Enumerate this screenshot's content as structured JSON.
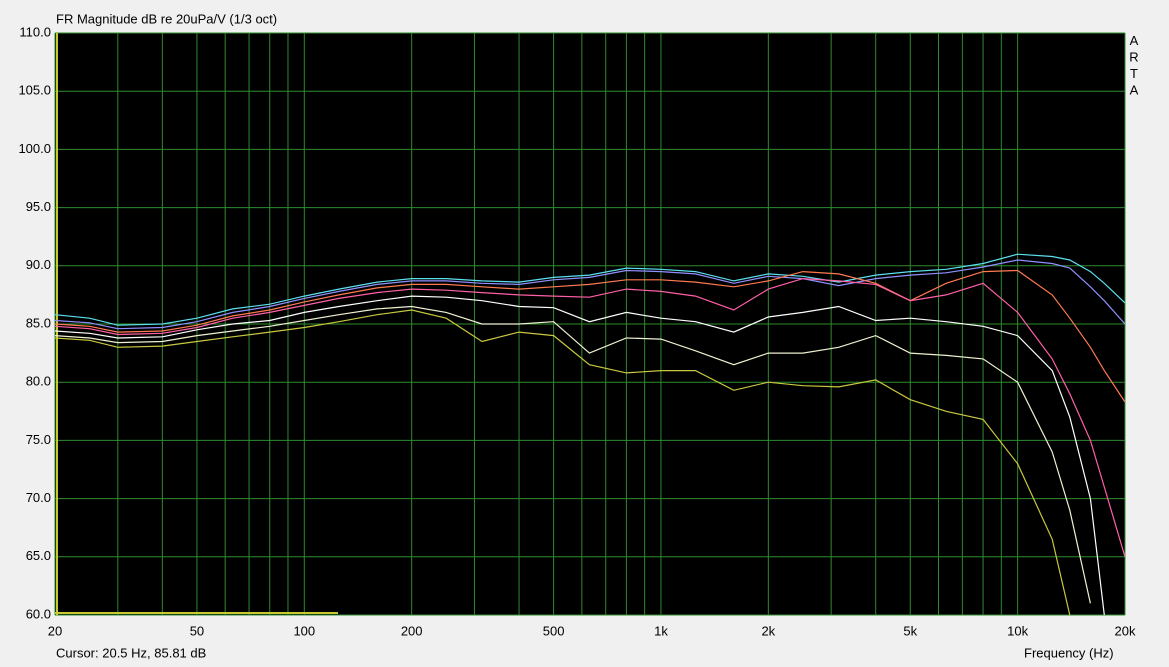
{
  "chart_data": {
    "type": "line",
    "title": "FR Magnitude dB re 20uPa/V (1/3 oct)",
    "watermark": "ARTA",
    "cursor_text": "Cursor: 20.5 Hz, 85.81 dB",
    "x_label": "Frequency (Hz)",
    "log_x": true,
    "grid": true,
    "xlim": [
      20,
      20000
    ],
    "ylim": [
      60,
      110
    ],
    "xticks": [
      20,
      50,
      100,
      200,
      500,
      {
        "value": 1000,
        "label": "1k"
      },
      {
        "value": 2000,
        "label": "2k"
      },
      {
        "value": 5000,
        "label": "5k"
      },
      {
        "value": 10000,
        "label": "10k"
      },
      {
        "value": 20000,
        "label": "20k"
      }
    ],
    "xminor": [
      30,
      40,
      60,
      70,
      80,
      90,
      300,
      400,
      600,
      700,
      800,
      900,
      3000,
      4000,
      6000,
      7000,
      8000,
      9000
    ],
    "yticks": [
      {
        "value": 60,
        "label": "60.0"
      },
      {
        "value": 65,
        "label": "65.0"
      },
      {
        "value": 70,
        "label": "70.0"
      },
      {
        "value": 75,
        "label": "75.0"
      },
      {
        "value": 80,
        "label": "80.0"
      },
      {
        "value": 85,
        "label": "85.0"
      },
      {
        "value": 90,
        "label": "90.0"
      },
      {
        "value": 95,
        "label": "95.0"
      },
      {
        "value": 100,
        "label": "100.0"
      },
      {
        "value": 105,
        "label": "105.0"
      },
      {
        "value": 110,
        "label": "110.0"
      }
    ],
    "x": [
      20,
      25,
      30,
      40,
      50,
      63,
      80,
      100,
      125,
      160,
      200,
      250,
      315,
      400,
      500,
      630,
      800,
      1000,
      1250,
      1600,
      2000,
      2500,
      3150,
      4000,
      5000,
      6300,
      8000,
      10000,
      12500,
      14000,
      16000,
      17500,
      20000
    ],
    "series": [
      {
        "color": "#5ce0f0",
        "values": [
          85.8,
          85.5,
          84.9,
          85,
          85.5,
          86.3,
          86.7,
          87.4,
          88,
          88.6,
          88.9,
          88.9,
          88.7,
          88.6,
          89,
          89.2,
          89.8,
          89.7,
          89.5,
          88.7,
          89.3,
          89.1,
          88.6,
          89.2,
          89.5,
          89.7,
          90.2,
          91,
          90.8,
          90.5,
          89.5,
          88.5,
          86.8
        ]
      },
      {
        "color": "#9090ff",
        "values": [
          85.3,
          85.1,
          84.6,
          84.7,
          85.2,
          86,
          86.5,
          87.2,
          87.8,
          88.4,
          88.7,
          88.7,
          88.5,
          88.4,
          88.8,
          89,
          89.6,
          89.5,
          89.3,
          88.5,
          89.1,
          88.9,
          88.3,
          88.9,
          89.2,
          89.4,
          89.9,
          90.5,
          90.2,
          89.8,
          88.2,
          87,
          85
        ]
      },
      {
        "color": "#ff7a50",
        "values": [
          85,
          84.8,
          84.3,
          84.4,
          84.9,
          85.7,
          86.2,
          86.9,
          87.5,
          88.1,
          88.4,
          88.4,
          88.2,
          88,
          88.2,
          88.4,
          88.8,
          88.8,
          88.6,
          88.2,
          88.7,
          89.5,
          89.3,
          88.5,
          87,
          88.5,
          89.5,
          89.6,
          87.5,
          85.5,
          83,
          81,
          78.3
        ]
      },
      {
        "color": "#ff60a8",
        "values": [
          84.8,
          84.6,
          84.1,
          84.2,
          84.7,
          85.5,
          86,
          86.6,
          87.2,
          87.7,
          88,
          87.9,
          87.7,
          87.5,
          87.4,
          87.3,
          88,
          87.8,
          87.4,
          86.2,
          88,
          88.9,
          88.7,
          88.4,
          87,
          87.5,
          88.5,
          86,
          82,
          79,
          75,
          71,
          65
        ]
      },
      {
        "color": "#ffffff",
        "values": [
          84.4,
          84.2,
          83.8,
          83.9,
          84.5,
          85,
          85.3,
          86,
          86.5,
          87,
          87.4,
          87.3,
          87,
          86.5,
          86.4,
          85.2,
          86,
          85.5,
          85.2,
          84.3,
          85.6,
          86,
          86.5,
          85.3,
          85.5,
          85.2,
          84.8,
          84,
          81,
          77,
          70,
          60,
          null
        ]
      },
      {
        "color": "#f0f0d0",
        "values": [
          84,
          83.8,
          83.4,
          83.5,
          84,
          84.4,
          84.8,
          85.3,
          85.8,
          86.3,
          86.5,
          86,
          85,
          85,
          85.2,
          82.5,
          83.8,
          83.7,
          82.7,
          81.5,
          82.5,
          82.5,
          83,
          84,
          82.5,
          82.3,
          82,
          80,
          74,
          69,
          61,
          null,
          null
        ]
      },
      {
        "color": "#c8c840",
        "values": [
          83.8,
          83.6,
          83,
          83.1,
          83.5,
          83.9,
          84.3,
          84.7,
          85.2,
          85.8,
          86.2,
          85.5,
          83.5,
          84.3,
          84,
          81.5,
          80.8,
          81,
          81,
          79.3,
          80,
          79.7,
          79.6,
          80.2,
          78.5,
          77.5,
          76.8,
          73,
          66.5,
          60,
          null,
          null,
          null
        ]
      }
    ]
  }
}
